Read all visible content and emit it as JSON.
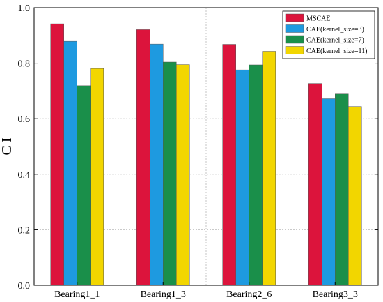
{
  "chart_data": {
    "type": "bar",
    "categories": [
      "Bearing1_1",
      "Bearing1_3",
      "Bearing2_6",
      "Bearing3_3"
    ],
    "series": [
      {
        "name": "MSCAE",
        "color": "#DC143C",
        "values": [
          0.942,
          0.921,
          0.868,
          0.727
        ]
      },
      {
        "name": "CAE(kernel_size=3)",
        "color": "#1E9AE0",
        "values": [
          0.879,
          0.869,
          0.776,
          0.672
        ]
      },
      {
        "name": "CAE(kernel_size=7)",
        "color": "#1A8F4A",
        "values": [
          0.719,
          0.804,
          0.794,
          0.689
        ]
      },
      {
        "name": "CAE(kernel_size=11)",
        "color": "#F2D600",
        "values": [
          0.781,
          0.795,
          0.843,
          0.644
        ]
      }
    ],
    "ylabel": "C I",
    "xlabel": "",
    "ylim": [
      0,
      1.0
    ],
    "yticks": [
      "0.0",
      "0.2",
      "0.4",
      "0.6",
      "0.8",
      "1.0"
    ],
    "grid": "dotted",
    "legend_position": "top-right"
  }
}
